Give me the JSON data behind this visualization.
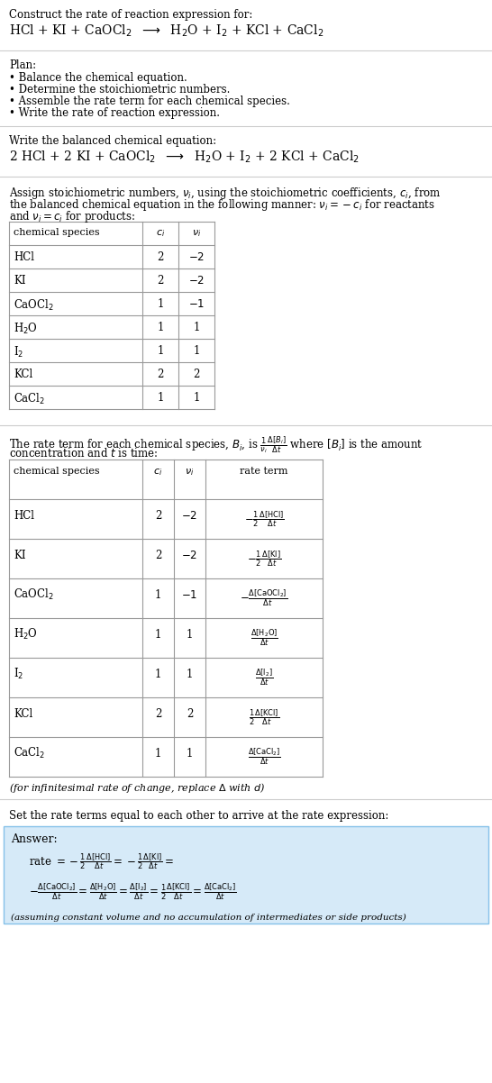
{
  "title_line1": "Construct the rate of reaction expression for:",
  "title_line2": "HCl + KI + CaOCl$_2$  $\\longrightarrow$  H$_2$O + I$_2$ + KCl + CaCl$_2$",
  "plan_header": "Plan:",
  "plan_items": [
    "• Balance the chemical equation.",
    "• Determine the stoichiometric numbers.",
    "• Assemble the rate term for each chemical species.",
    "• Write the rate of reaction expression."
  ],
  "section2_header": "Write the balanced chemical equation:",
  "section2_eq": "2 HCl + 2 KI + CaOCl$_2$  $\\longrightarrow$  H$_2$O + I$_2$ + 2 KCl + CaCl$_2$",
  "section3_text1": "Assign stoichiometric numbers, $\\nu_i$, using the stoichiometric coefficients, $c_i$, from",
  "section3_text2": "the balanced chemical equation in the following manner: $\\nu_i = -c_i$ for reactants",
  "section3_text3": "and $\\nu_i = c_i$ for products:",
  "table1_headers": [
    "chemical species",
    "$c_i$",
    "$\\nu_i$"
  ],
  "table1_rows": [
    [
      "HCl",
      "2",
      "$-2$"
    ],
    [
      "KI",
      "2",
      "$-2$"
    ],
    [
      "CaOCl$_2$",
      "1",
      "$-1$"
    ],
    [
      "H$_2$O",
      "1",
      "1"
    ],
    [
      "I$_2$",
      "1",
      "1"
    ],
    [
      "KCl",
      "2",
      "2"
    ],
    [
      "CaCl$_2$",
      "1",
      "1"
    ]
  ],
  "section4_text1": "The rate term for each chemical species, $B_i$, is $\\frac{1}{\\nu_i}\\frac{\\Delta[B_i]}{\\Delta t}$ where $[B_i]$ is the amount",
  "section4_text2": "concentration and $t$ is time:",
  "table2_headers": [
    "chemical species",
    "$c_i$",
    "$\\nu_i$",
    "rate term"
  ],
  "table2_rows": [
    [
      "HCl",
      "2",
      "$-2$",
      "$-\\frac{1}{2}\\frac{\\Delta[\\mathrm{HCl}]}{\\Delta t}$"
    ],
    [
      "KI",
      "2",
      "$-2$",
      "$-\\frac{1}{2}\\frac{\\Delta[\\mathrm{KI}]}{\\Delta t}$"
    ],
    [
      "CaOCl$_2$",
      "1",
      "$-1$",
      "$-\\frac{\\Delta[\\mathrm{CaOCl_2}]}{\\Delta t}$"
    ],
    [
      "H$_2$O",
      "1",
      "1",
      "$\\frac{\\Delta[\\mathrm{H_2O}]}{\\Delta t}$"
    ],
    [
      "I$_2$",
      "1",
      "1",
      "$\\frac{\\Delta[\\mathrm{I_2}]}{\\Delta t}$"
    ],
    [
      "KCl",
      "2",
      "2",
      "$\\frac{1}{2}\\frac{\\Delta[\\mathrm{KCl}]}{\\Delta t}$"
    ],
    [
      "CaCl$_2$",
      "1",
      "1",
      "$\\frac{\\Delta[\\mathrm{CaCl_2}]}{\\Delta t}$"
    ]
  ],
  "infinitesimal_note": "(for infinitesimal rate of change, replace $\\Delta$ with $d$)",
  "section5_header": "Set the rate terms equal to each other to arrive at the rate expression:",
  "answer_box_color": "#d6eaf8",
  "answer_border_color": "#85c1e9",
  "answer_label": "Answer:",
  "rate_line1": "rate $= -\\frac{1}{2}\\frac{\\Delta[\\mathrm{HCl}]}{\\Delta t} = -\\frac{1}{2}\\frac{\\Delta[\\mathrm{KI}]}{\\Delta t} =$",
  "rate_line2": "$-\\frac{\\Delta[\\mathrm{CaOCl_2}]}{\\Delta t} = \\frac{\\Delta[\\mathrm{H_2O}]}{\\Delta t} = \\frac{\\Delta[\\mathrm{I_2}]}{\\Delta t} = \\frac{1}{2}\\frac{\\Delta[\\mathrm{KCl}]}{\\Delta t} = \\frac{\\Delta[\\mathrm{CaCl_2}]}{\\Delta t}$",
  "answer_note": "(assuming constant volume and no accumulation of intermediates or side products)",
  "bg_color": "#ffffff",
  "divider_color": "#cccccc",
  "table_border_color": "#999999",
  "text_color": "#000000"
}
